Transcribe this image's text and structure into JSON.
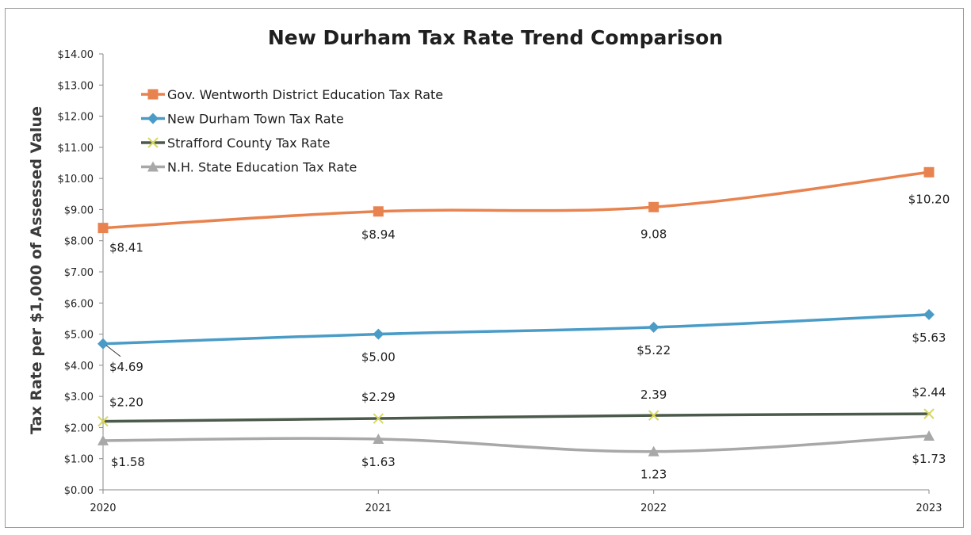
{
  "chart_data": {
    "type": "line",
    "title": "New Durham Tax Rate Trend Comparison",
    "xlabel": "",
    "ylabel": "Tax Rate per $1,000 of Assessed Value",
    "categories": [
      "2020",
      "2021",
      "2022",
      "2023"
    ],
    "ylim": [
      0,
      14
    ],
    "ytick_step": 1,
    "ytick_labels": [
      "$0.00",
      "$1.00",
      "$2.00",
      "$3.00",
      "$4.00",
      "$5.00",
      "$6.00",
      "$7.00",
      "$8.00",
      "$9.00",
      "$10.00",
      "$11.00",
      "$12.00",
      "$13.00",
      "$14.00"
    ],
    "grid": false,
    "legend_position": "top-left",
    "series": [
      {
        "name": "Gov. Wentworth District Education Tax Rate",
        "values": [
          8.41,
          8.94,
          9.08,
          10.2
        ],
        "labels": [
          "$8.41",
          "$8.94",
          "9.08",
          "$10.20"
        ],
        "color": "#e8834f",
        "marker": "square"
      },
      {
        "name": "New Durham Town Tax Rate",
        "values": [
          4.69,
          5.0,
          5.22,
          5.63
        ],
        "labels": [
          "$4.69",
          "$5.00",
          "$5.22",
          "$5.63"
        ],
        "color": "#4a9cc7",
        "marker": "diamond"
      },
      {
        "name": "Strafford County Tax Rate",
        "values": [
          2.2,
          2.29,
          2.39,
          2.44
        ],
        "labels": [
          "$2.20",
          "$2.29",
          "2.39",
          "$2.44"
        ],
        "color": "#4b5a4b",
        "marker": "x",
        "marker_color": "#d9d860"
      },
      {
        "name": "N.H. State Education Tax Rate",
        "values": [
          1.58,
          1.63,
          1.23,
          1.73
        ],
        "labels": [
          "$1.58",
          "$1.63",
          "1.23",
          "$1.73"
        ],
        "color": "#a8a8a8",
        "marker": "triangle"
      }
    ]
  }
}
